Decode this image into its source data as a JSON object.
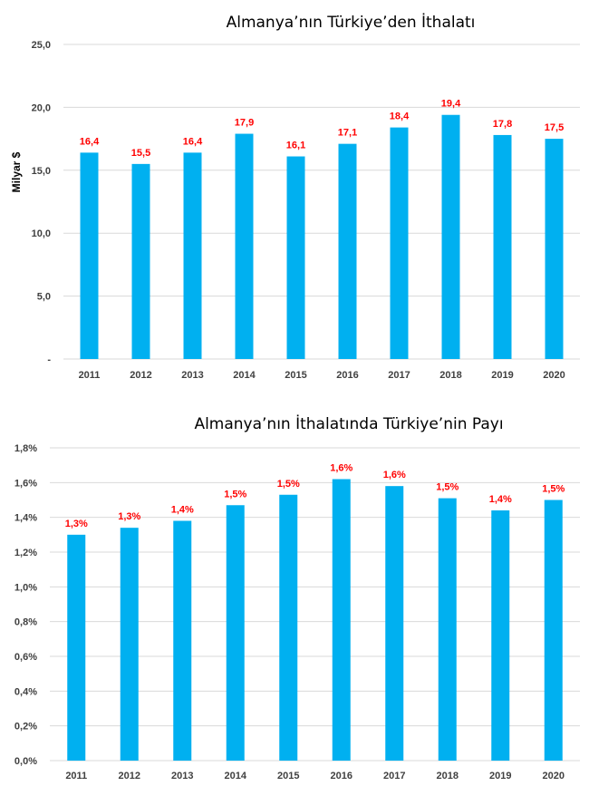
{
  "chart_data": [
    {
      "type": "bar",
      "title": "Almanya’nın Türkiye’den İthalatı",
      "ylabel": "Milyar $",
      "xlabel": "",
      "categories": [
        "2011",
        "2012",
        "2013",
        "2014",
        "2015",
        "2016",
        "2017",
        "2018",
        "2019",
        "2020"
      ],
      "values": [
        16.4,
        15.5,
        16.4,
        17.9,
        16.1,
        17.1,
        18.4,
        19.4,
        17.8,
        17.5
      ],
      "data_labels": [
        "16,4",
        "15,5",
        "16,4",
        "17,9",
        "16,1",
        "17,1",
        "18,4",
        "19,4",
        "17,8",
        "17,5"
      ],
      "ylim": [
        0,
        25
      ],
      "yticks": [
        0,
        5,
        10,
        15,
        20,
        25
      ],
      "ytick_labels": [
        "-",
        "5,0",
        "10,0",
        "15,0",
        "20,0",
        "25,0"
      ],
      "grid": true,
      "legend": "none",
      "bar_color": "#00b0f0",
      "label_color": "#ff0000"
    },
    {
      "type": "bar",
      "title": "Almanya’nın İthalatında Türkiye’nin Payı",
      "ylabel": "",
      "xlabel": "",
      "categories": [
        "2011",
        "2012",
        "2013",
        "2014",
        "2015",
        "2016",
        "2017",
        "2018",
        "2019",
        "2020"
      ],
      "values": [
        1.3,
        1.34,
        1.38,
        1.47,
        1.53,
        1.62,
        1.58,
        1.51,
        1.44,
        1.5
      ],
      "data_labels": [
        "1,3%",
        "1,3%",
        "1,4%",
        "1,5%",
        "1,5%",
        "1,6%",
        "1,6%",
        "1,5%",
        "1,4%",
        "1,5%"
      ],
      "ylim": [
        0,
        1.8
      ],
      "yticks": [
        0,
        0.2,
        0.4,
        0.6,
        0.8,
        1.0,
        1.2,
        1.4,
        1.6,
        1.8
      ],
      "ytick_labels": [
        "0,0%",
        "0,2%",
        "0,4%",
        "0,6%",
        "0,8%",
        "1,0%",
        "1,2%",
        "1,4%",
        "1,6%",
        "1,8%"
      ],
      "grid": true,
      "legend": "none",
      "bar_color": "#00b0f0",
      "label_color": "#ff0000"
    }
  ]
}
